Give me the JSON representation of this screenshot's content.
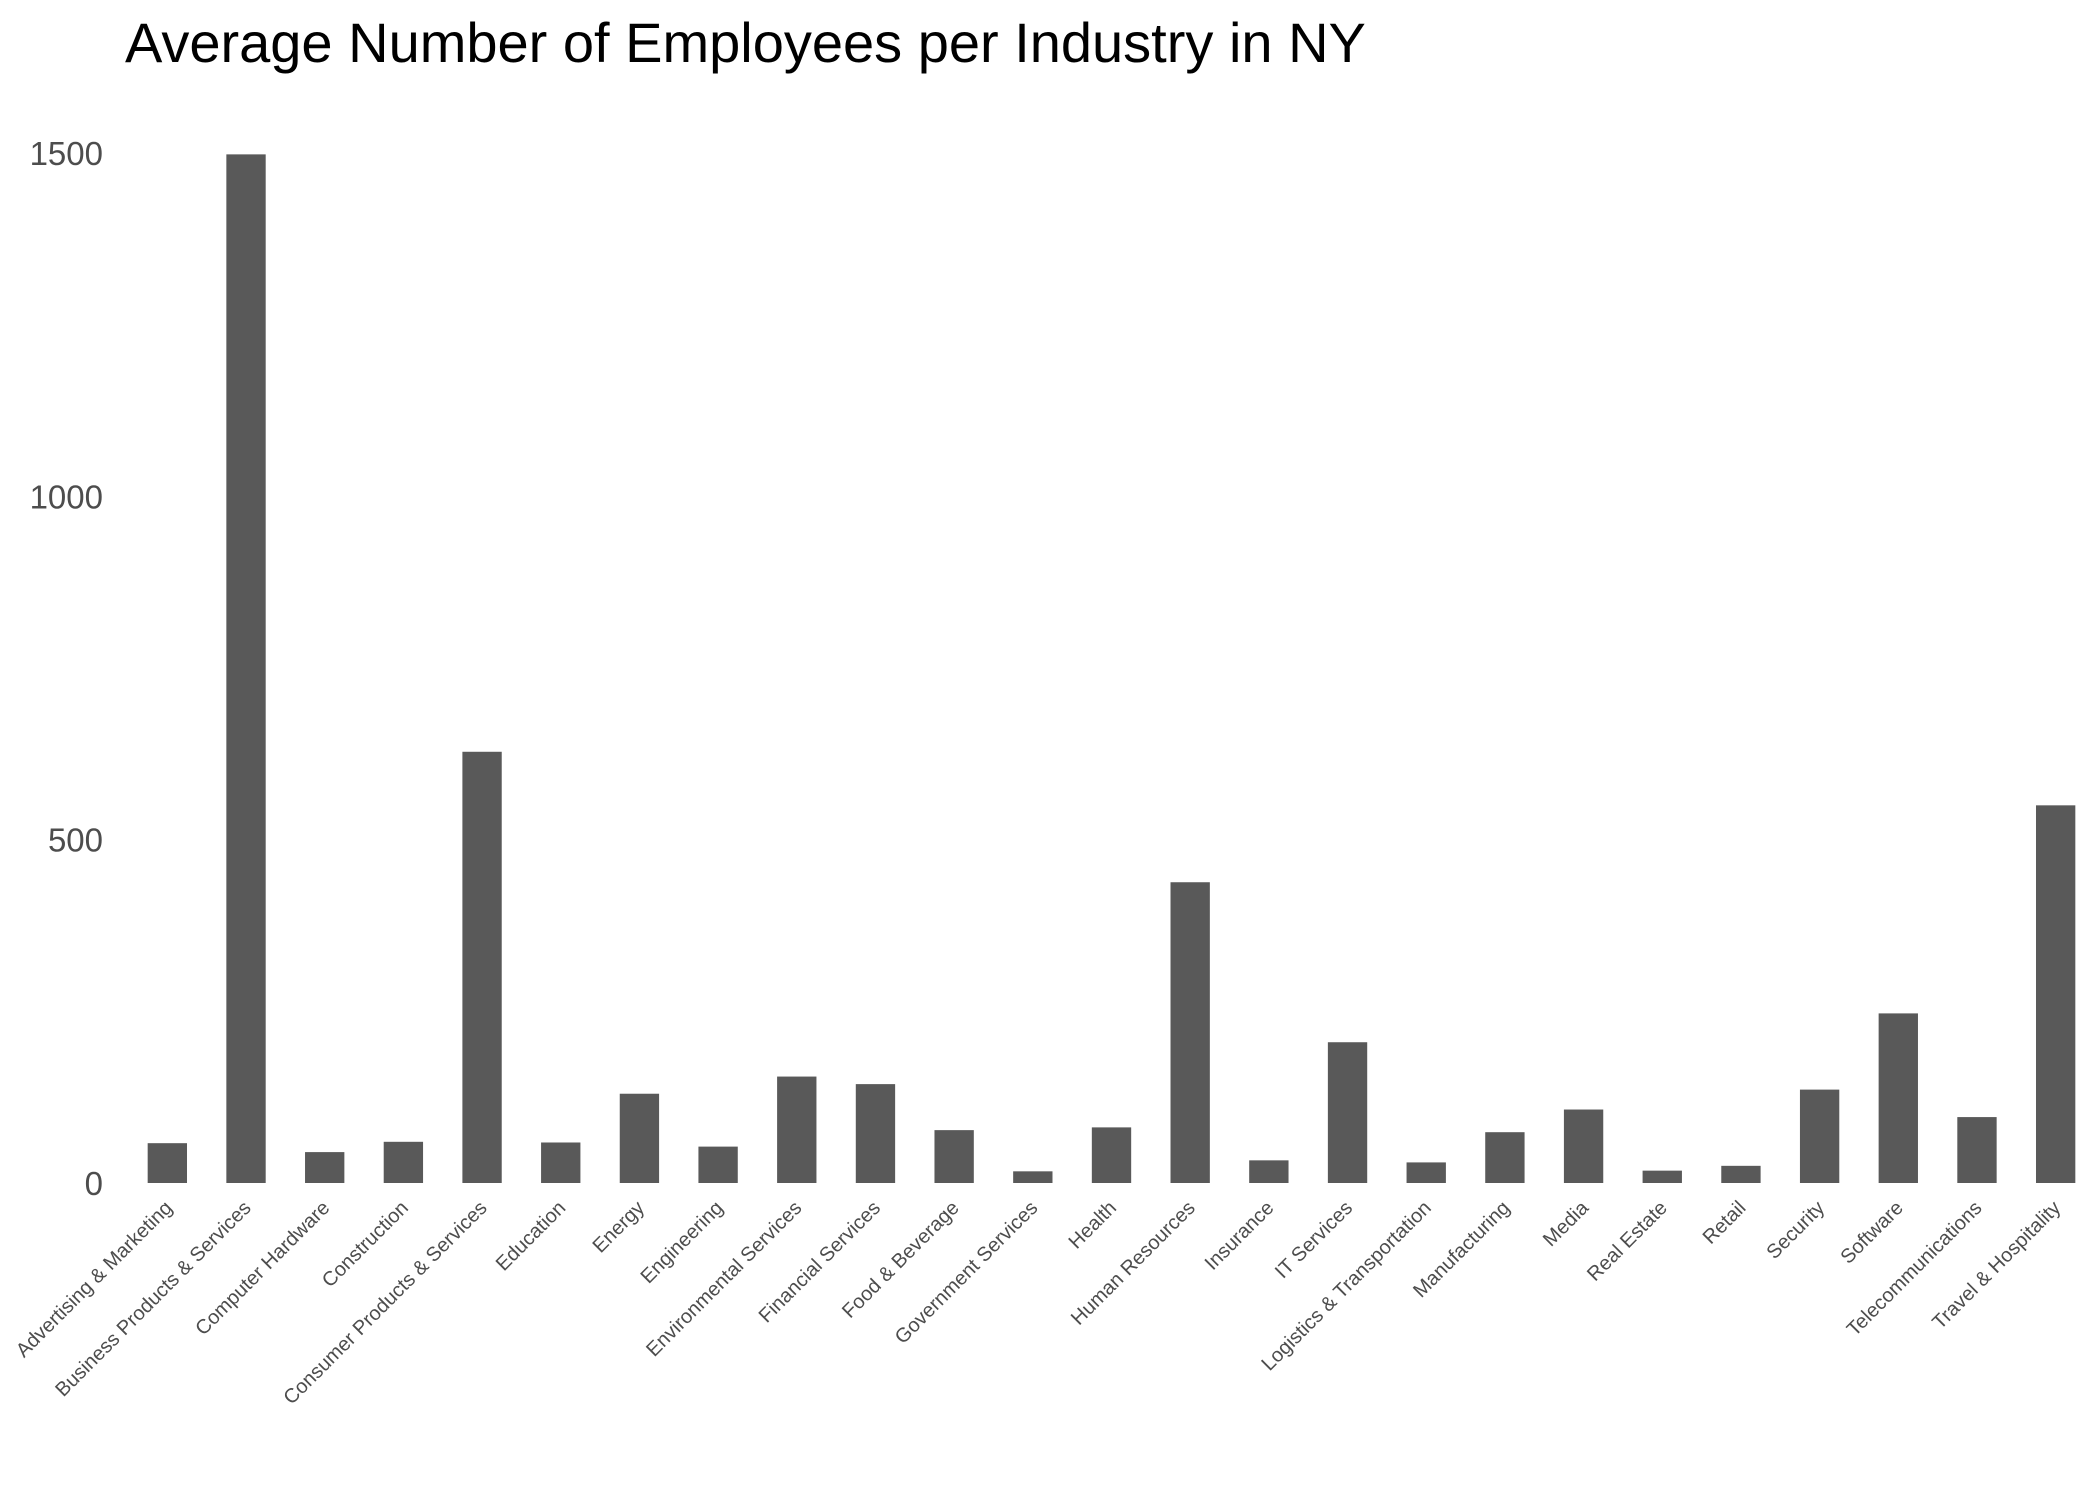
{
  "chart_data": {
    "type": "bar",
    "title": "Average Number of Employees per Industry in NY",
    "xlabel": "",
    "ylabel": "",
    "ylim": [
      0,
      1500
    ],
    "yticks": [
      0,
      500,
      1000,
      1500
    ],
    "grid": false,
    "legend": "none",
    "bar_color": "#595959",
    "categories": [
      "Advertising & Marketing",
      "Business Products & Services",
      "Computer Hardware",
      "Construction",
      "Consumer Products & Services",
      "Education",
      "Energy",
      "Engineering",
      "Environmental Services",
      "Financial Services",
      "Food & Beverage",
      "Government Services",
      "Health",
      "Human Resources",
      "Insurance",
      "IT Services",
      "Logistics & Transportation",
      "Manufacturing",
      "Media",
      "Real Estate",
      "Retail",
      "Security",
      "Software",
      "Telecommunications",
      "Travel & Hospitality"
    ],
    "values": [
      58,
      1498,
      45,
      60,
      628,
      59,
      130,
      53,
      155,
      144,
      77,
      17,
      81,
      438,
      33,
      205,
      30,
      74,
      107,
      18,
      25,
      136,
      247,
      96,
      550
    ]
  }
}
